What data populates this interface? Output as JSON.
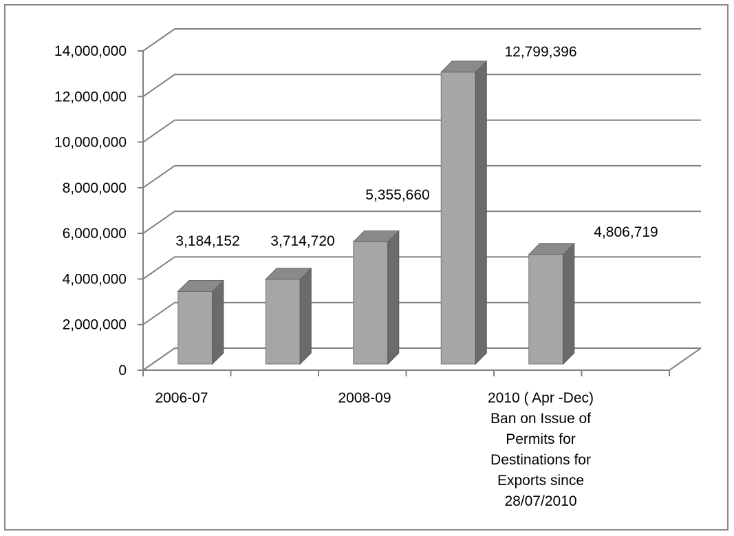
{
  "chart_data": {
    "type": "bar",
    "style": "3d-column",
    "title": "",
    "xlabel": "",
    "ylabel": "",
    "ylim": [
      0,
      14000000
    ],
    "grid": true,
    "legend": "none",
    "y_ticks": [
      "0",
      "2,000,000",
      "4,000,000",
      "6,000,000",
      "8,000,000",
      "10,000,000",
      "12,000,000",
      "14,000,000"
    ],
    "categories": [
      "2006-07",
      "",
      "2008-09",
      "",
      "2010 ( Apr -Dec)"
    ],
    "x_tick_labels": [
      [
        "2006-07"
      ],
      [],
      [
        "2008-09"
      ],
      [],
      [
        "2010 ( Apr -Dec)",
        "Ban on Issue of",
        "Permits for",
        "Destinations for",
        "Exports since",
        "28/07/2010"
      ]
    ],
    "values": [
      3184152,
      3714720,
      5355660,
      12799396,
      4806719
    ],
    "data_labels": [
      "3,184,152",
      "3,714,720",
      "5,355,660",
      "12,799,396",
      "4,806,719"
    ],
    "colors": {
      "bar_front": "#a6a6a6",
      "bar_side": "#6b6b6b",
      "bar_top": "#8a8a8a",
      "gridline": "#808080",
      "axis": "#808080"
    }
  }
}
